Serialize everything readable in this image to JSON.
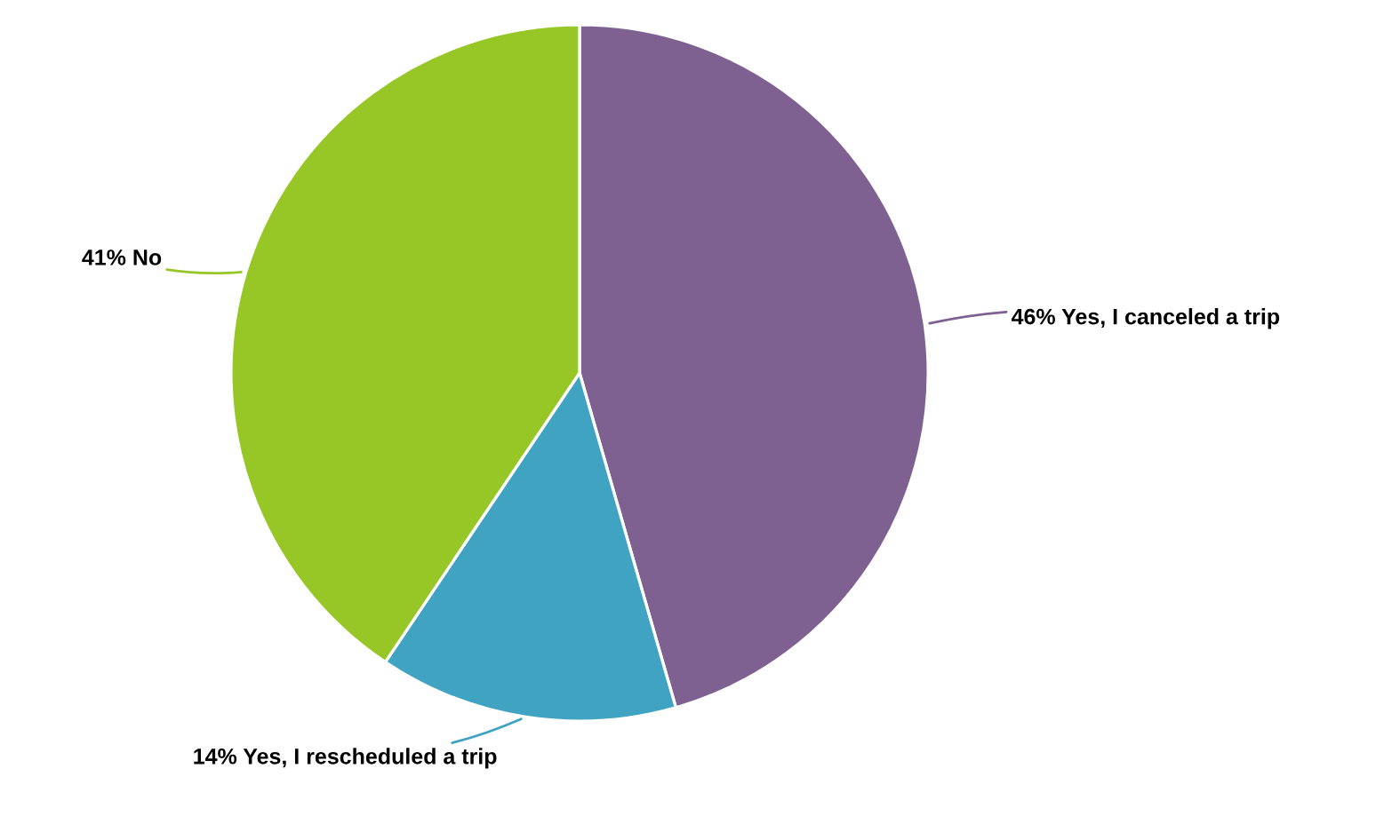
{
  "chart_data": {
    "type": "pie",
    "categories": [
      "Yes, I canceled a trip",
      "Yes, I rescheduled a trip",
      "No"
    ],
    "values": [
      46,
      14,
      41
    ],
    "value_labels": [
      "46%",
      "14%",
      "41%"
    ],
    "colors": [
      "#7e6190",
      "#40a3c2",
      "#97c627"
    ],
    "legend": false
  }
}
